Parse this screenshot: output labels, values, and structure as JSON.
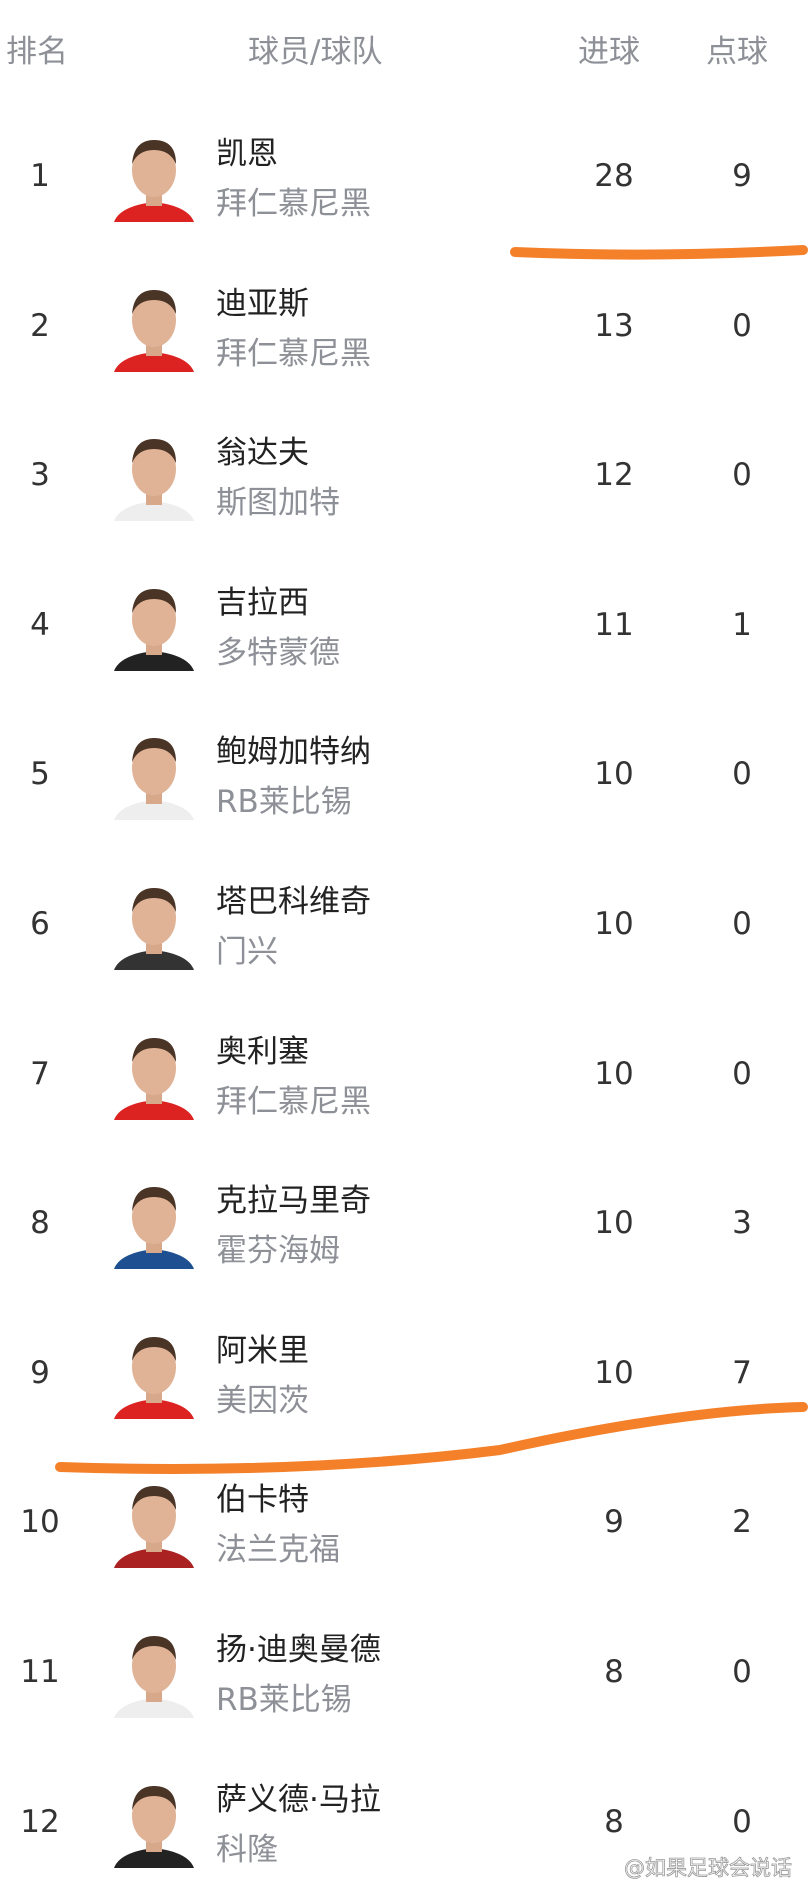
{
  "header": {
    "rank": "排名",
    "player_team": "球员/球队",
    "goals": "进球",
    "penalties": "点球"
  },
  "rows": [
    {
      "rank": "1",
      "name": "凯恩",
      "team": "拜仁慕尼黑",
      "goals": "28",
      "penalties": "9",
      "kit": "#d22"
    },
    {
      "rank": "2",
      "name": "迪亚斯",
      "team": "拜仁慕尼黑",
      "goals": "13",
      "penalties": "0",
      "kit": "#d22"
    },
    {
      "rank": "3",
      "name": "翁达夫",
      "team": "斯图加特",
      "goals": "12",
      "penalties": "0",
      "kit": "#eee"
    },
    {
      "rank": "4",
      "name": "吉拉西",
      "team": "多特蒙德",
      "goals": "11",
      "penalties": "1",
      "kit": "#222"
    },
    {
      "rank": "5",
      "name": "鲍姆加特纳",
      "team": "RB莱比锡",
      "goals": "10",
      "penalties": "0",
      "kit": "#eee"
    },
    {
      "rank": "6",
      "name": "塔巴科维奇",
      "team": "门兴",
      "goals": "10",
      "penalties": "0",
      "kit": "#333"
    },
    {
      "rank": "7",
      "name": "奥利塞",
      "team": "拜仁慕尼黑",
      "goals": "10",
      "penalties": "0",
      "kit": "#d22"
    },
    {
      "rank": "8",
      "name": "克拉马里奇",
      "team": "霍芬海姆",
      "goals": "10",
      "penalties": "3",
      "kit": "#1d4f91"
    },
    {
      "rank": "9",
      "name": "阿米里",
      "team": "美因茨",
      "goals": "10",
      "penalties": "7",
      "kit": "#d22"
    },
    {
      "rank": "10",
      "name": "伯卡特",
      "team": "法兰克福",
      "goals": "9",
      "penalties": "2",
      "kit": "#a22"
    },
    {
      "rank": "11",
      "name": "扬·迪奥曼德",
      "team": "RB莱比锡",
      "goals": "8",
      "penalties": "0",
      "kit": "#eee"
    },
    {
      "rank": "12",
      "name": "萨义德·马拉",
      "team": "科隆",
      "goals": "8",
      "penalties": "0",
      "kit": "#222"
    }
  ],
  "annotation_color": "#f5802a",
  "watermark": "@如果足球会说话"
}
